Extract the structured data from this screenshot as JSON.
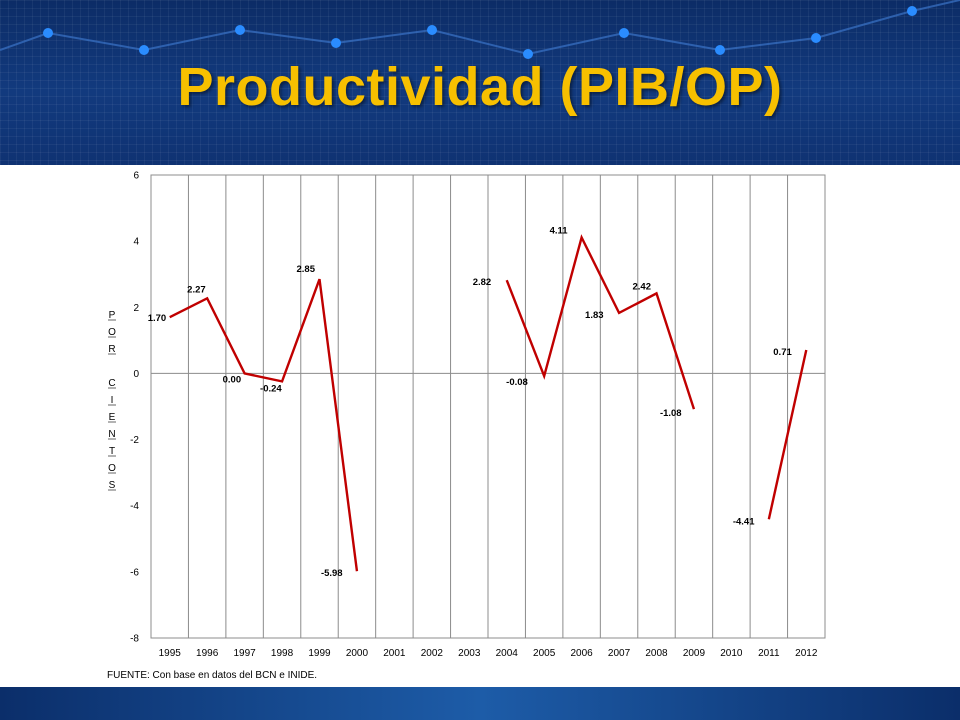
{
  "slide": {
    "title": "Productividad (PIB/OP)",
    "source": "FUENTE: Con base en datos del BCN e INIDE."
  },
  "colors": {
    "header_bg": "#0f3272",
    "title": "#f7c000",
    "line": "#c00000",
    "dots": "#2a8cff"
  },
  "chart_data": {
    "type": "line",
    "ylabel_vertical": [
      "P",
      "O",
      "R",
      "",
      "C",
      "I",
      "E",
      "N",
      "T",
      "O",
      "S"
    ],
    "categories": [
      "1995",
      "1996",
      "1997",
      "1998",
      "1999",
      "2000",
      "2001",
      "2002",
      "2003",
      "2004",
      "2005",
      "2006",
      "2007",
      "2008",
      "2009",
      "2010",
      "2011",
      "2012"
    ],
    "values": [
      1.7,
      2.27,
      0.0,
      -0.24,
      2.85,
      -5.98,
      null,
      null,
      null,
      2.82,
      -0.08,
      4.11,
      1.83,
      2.42,
      -1.08,
      null,
      -4.41,
      0.71
    ],
    "labels": [
      "1.70",
      "2.27",
      "0.00",
      "-0.24",
      "2.85",
      "-5.98",
      "",
      "",
      "",
      "2.82",
      "-0.08",
      "4.11",
      "1.83",
      "2.42",
      "-1.08",
      "",
      "-4.41",
      "0.71"
    ],
    "ylim": [
      -8,
      6
    ],
    "yticks": [
      6,
      4,
      2,
      0,
      -2,
      -4,
      -6,
      -8
    ],
    "ytick_labels": [
      "6",
      "4",
      "2",
      "0",
      "-2",
      "-4",
      "-6",
      "-8"
    ],
    "grid": "vertical",
    "line_color": "#c00000"
  }
}
